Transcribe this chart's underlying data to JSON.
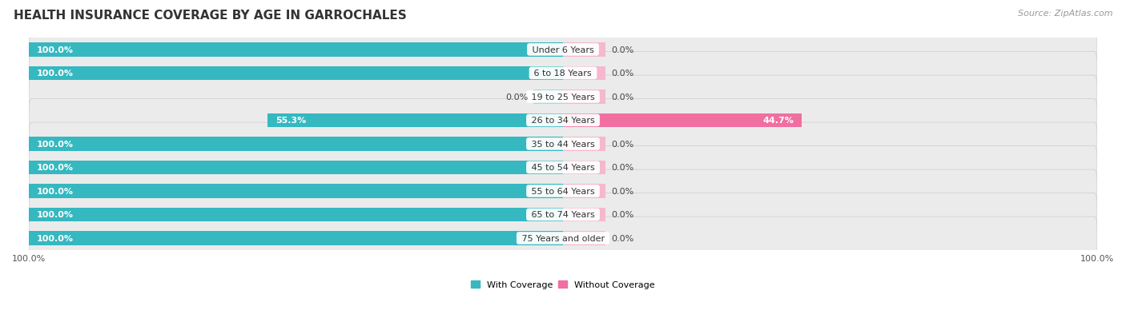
{
  "title": "HEALTH INSURANCE COVERAGE BY AGE IN GARROCHALES",
  "source": "Source: ZipAtlas.com",
  "categories": [
    "Under 6 Years",
    "6 to 18 Years",
    "19 to 25 Years",
    "26 to 34 Years",
    "35 to 44 Years",
    "45 to 54 Years",
    "55 to 64 Years",
    "65 to 74 Years",
    "75 Years and older"
  ],
  "with_coverage": [
    100.0,
    100.0,
    0.0,
    55.3,
    100.0,
    100.0,
    100.0,
    100.0,
    100.0
  ],
  "without_coverage": [
    0.0,
    0.0,
    0.0,
    44.7,
    0.0,
    0.0,
    0.0,
    0.0,
    0.0
  ],
  "color_with": "#35b8c0",
  "color_without": "#f06fa0",
  "color_with_zero": "#a8d8dc",
  "color_without_zero": "#f5b8ce",
  "bg_row": "#ebebeb",
  "title_fontsize": 11,
  "source_fontsize": 8,
  "cat_label_fontsize": 8,
  "bar_label_fontsize": 8,
  "legend_fontsize": 8,
  "axis_label_fontsize": 8,
  "xlim_left": -100,
  "xlim_right": 100,
  "zero_stub_with": 5.5,
  "zero_stub_without": 8.0
}
